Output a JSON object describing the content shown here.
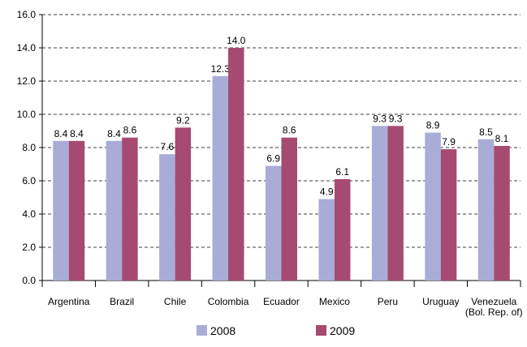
{
  "chart_data": {
    "type": "bar",
    "categories": [
      "Argentina",
      "Brazil",
      "Chile",
      "Colombia",
      "Ecuador",
      "Mexico",
      "Peru",
      "Uruguay",
      "Venezuela\n(Bol. Rep. of)"
    ],
    "series": [
      {
        "name": "2008",
        "color": "#a9acd6",
        "values": [
          8.4,
          8.4,
          7.6,
          12.3,
          6.9,
          4.9,
          9.3,
          8.9,
          8.5
        ],
        "value_labels": [
          "8.4",
          "8.4",
          "7.6",
          "12.3",
          "6.9",
          "4.9",
          "9.3",
          "8.9",
          "8.5"
        ]
      },
      {
        "name": "2009",
        "color": "#a64a71",
        "values": [
          8.4,
          8.6,
          9.2,
          14.0,
          8.6,
          6.1,
          9.3,
          7.9,
          8.1
        ],
        "value_labels": [
          "8.4",
          "8.6",
          "9.2",
          "14.0",
          "8.6",
          "6.1",
          "9.3",
          "7.9",
          "8.1"
        ]
      }
    ],
    "ylim": [
      0,
      16
    ],
    "yticks": [
      {
        "value": 0,
        "label": "0.0"
      },
      {
        "value": 2,
        "label": "2.0"
      },
      {
        "value": 4,
        "label": "4.0"
      },
      {
        "value": 6,
        "label": "6.0"
      },
      {
        "value": 8,
        "label": "8.0"
      },
      {
        "value": 10,
        "label": "10.0"
      },
      {
        "value": 12,
        "label": "12.0"
      },
      {
        "value": 14,
        "label": "14.0"
      },
      {
        "value": 16,
        "label": "16.0"
      }
    ],
    "grid": true
  }
}
